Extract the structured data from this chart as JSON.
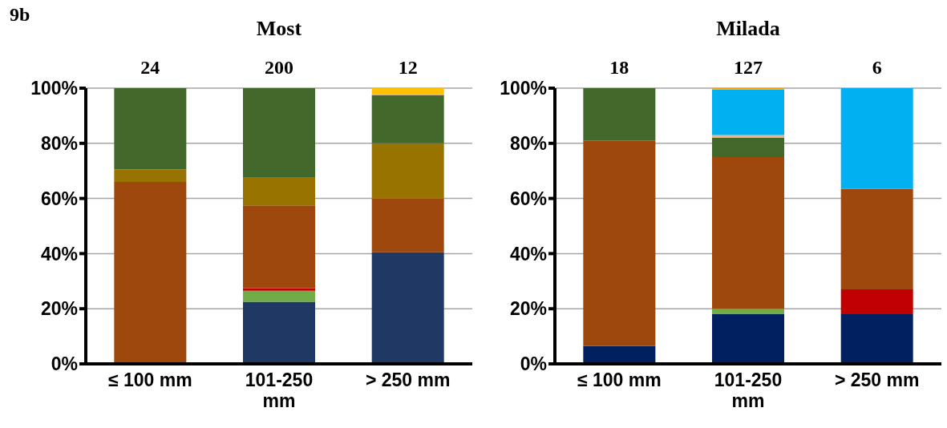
{
  "chart_data": [
    {
      "type": "bar",
      "title": "Most",
      "stacked": true,
      "categories": [
        "≤ 100 mm",
        "101-250 mm",
        "> 250 mm"
      ],
      "series": [
        {
          "color": "#203864",
          "values": [
            0,
            22.5,
            40.5
          ]
        },
        {
          "color": "#70ad47",
          "values": [
            0,
            4,
            0
          ]
        },
        {
          "color": "#c00000",
          "values": [
            0,
            1,
            0
          ]
        },
        {
          "color": "#9e480e",
          "values": [
            66,
            30,
            19.5
          ]
        },
        {
          "color": "#997300",
          "values": [
            4.5,
            10,
            20
          ]
        },
        {
          "color": "#43682b",
          "values": [
            29.5,
            32.5,
            17.5
          ]
        },
        {
          "color": "#f4b183",
          "values": [
            0,
            0,
            0.5
          ]
        },
        {
          "color": "#ffc000",
          "values": [
            0,
            0,
            2
          ]
        }
      ],
      "ylim": [
        0,
        100
      ],
      "yticks": [
        {
          "value": 0,
          "label": "0%"
        },
        {
          "value": 20,
          "label": "20%"
        },
        {
          "value": 40,
          "label": "40%"
        },
        {
          "value": 60,
          "label": "60%"
        },
        {
          "value": 80,
          "label": "80%"
        },
        {
          "value": 100,
          "label": "100%"
        }
      ],
      "grid": "y",
      "legend": false,
      "annotations": [
        "9b",
        "24",
        "200",
        "12"
      ]
    },
    {
      "type": "bar",
      "title": "Milada",
      "stacked": true,
      "categories": [
        "≤ 100 mm",
        "101-250 mm",
        "> 250 mm"
      ],
      "series": [
        {
          "color": "#002060",
          "values": [
            6.5,
            18,
            18
          ]
        },
        {
          "color": "#70ad47",
          "values": [
            0,
            2,
            0
          ]
        },
        {
          "color": "#c00000",
          "values": [
            0,
            0,
            9
          ]
        },
        {
          "color": "#9e480e",
          "values": [
            74.5,
            55,
            36.5
          ]
        },
        {
          "color": "#43682b",
          "values": [
            19,
            7,
            0
          ]
        },
        {
          "color": "#f4b183",
          "values": [
            0,
            1,
            0
          ]
        },
        {
          "color": "#00b0f0",
          "values": [
            0,
            16.5,
            36.5
          ]
        },
        {
          "color": "#ffa000",
          "values": [
            0,
            0.5,
            0
          ]
        }
      ],
      "ylim": [
        0,
        100
      ],
      "yticks": [
        {
          "value": 0,
          "label": "0%"
        },
        {
          "value": 20,
          "label": "20%"
        },
        {
          "value": 40,
          "label": "40%"
        },
        {
          "value": 60,
          "label": "60%"
        },
        {
          "value": 80,
          "label": "80%"
        },
        {
          "value": 100,
          "label": "100%"
        }
      ],
      "grid": "y",
      "legend": false,
      "annotations": [
        "18",
        "127",
        "6"
      ]
    }
  ]
}
